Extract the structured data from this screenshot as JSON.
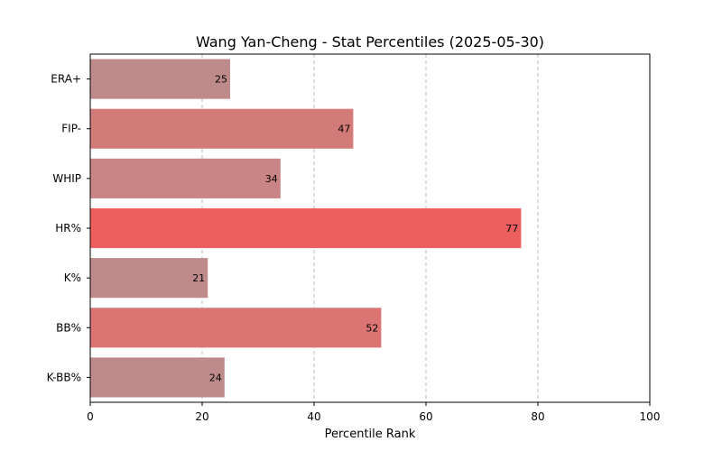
{
  "chart_data": {
    "type": "bar",
    "orientation": "horizontal",
    "title": "Wang Yan-Cheng - Stat Percentiles (2025-05-30)",
    "xlabel": "Percentile Rank",
    "ylabel": "",
    "xlim": [
      0,
      100
    ],
    "xticks": [
      0,
      20,
      40,
      60,
      80,
      100
    ],
    "grid": "x-only dashed",
    "categories": [
      "ERA+",
      "FIP-",
      "WHIP",
      "HR%",
      "K%",
      "BB%",
      "K-BB%"
    ],
    "values": [
      25,
      47,
      34,
      77,
      21,
      52,
      24
    ],
    "colors": [
      "#bf8a8a",
      "#d27b79",
      "#c98583",
      "#ed5f5f",
      "#be8b8a",
      "#db7574",
      "#bf8a8a"
    ]
  }
}
